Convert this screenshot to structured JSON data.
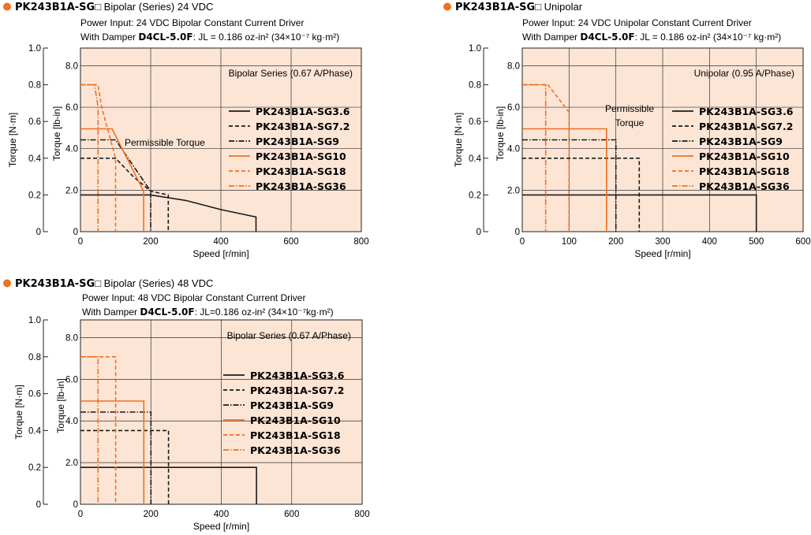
{
  "colors": {
    "orange": "#f07020",
    "panel": "#fde5d6",
    "black": "#1a1a1a",
    "grid": "#333333"
  },
  "chart_data": [
    {
      "type": "line",
      "title_model": "PK243B1A-SG",
      "title_box": "□",
      "title_suffix": " Bipolar (Series) 24 VDC",
      "info_line1": "Power Input: 24 VDC    Bipolar Constant Current Driver",
      "info_damper_prefix": "With Damper ",
      "info_damper_model": "D4CL-5.0F",
      "info_damper_rest": ": JL = 0.186 oz-in² (34×10⁻⁷ kg·m²)",
      "annotation": "Bipolar Series (0.67 A/Phase)",
      "region_label": [
        "Permissible Torque"
      ],
      "xlabel": "Speed [r/min]",
      "ylabel_left": "Torque [N·m]",
      "ylabel_right": "Torque [lb-in]",
      "xlim": [
        0,
        800
      ],
      "ylim": [
        0,
        1.0
      ],
      "x_ticks": [
        "0",
        "200",
        "400",
        "600",
        "800"
      ],
      "x_tick_values": [
        0,
        200,
        400,
        600,
        800
      ],
      "y_ticks_nm": [
        "0",
        "0.2",
        "0.4",
        "0.6",
        "0.8",
        "1.0"
      ],
      "y_tick_values_nm": [
        0,
        0.2,
        0.4,
        0.6,
        0.8,
        1.0
      ],
      "y_ticks_lbin": [
        "0",
        "2.0",
        "4.0",
        "6.0",
        "8.0"
      ],
      "y_tick_values_lbin": [
        0,
        2,
        4,
        6,
        8
      ],
      "series": [
        {
          "name": "PK243B1A-SG3.6",
          "color": "black",
          "dash": "solid",
          "points": [
            [
              0,
              0.2
            ],
            [
              200,
              0.2
            ],
            [
              300,
              0.17
            ],
            [
              400,
              0.12
            ],
            [
              500,
              0.08
            ],
            [
              500,
              0
            ]
          ]
        },
        {
          "name": "PK243B1A-SG7.2",
          "color": "black",
          "dash": "dash",
          "points": [
            [
              0,
              0.4
            ],
            [
              100,
              0.4
            ],
            [
              150,
              0.3
            ],
            [
              200,
              0.22
            ],
            [
              250,
              0.2
            ],
            [
              250,
              0
            ]
          ]
        },
        {
          "name": "PK243B1A-SG9",
          "color": "black",
          "dash": "dashdot",
          "points": [
            [
              0,
              0.5
            ],
            [
              100,
              0.5
            ],
            [
              200,
              0.22
            ],
            [
              200,
              0
            ]
          ]
        },
        {
          "name": "PK243B1A-SG10",
          "color": "orange",
          "dash": "solid",
          "points": [
            [
              0,
              0.56
            ],
            [
              90,
              0.56
            ],
            [
              180,
              0.22
            ],
            [
              180,
              0
            ]
          ]
        },
        {
          "name": "PK243B1A-SG18",
          "color": "orange",
          "dash": "dash",
          "points": [
            [
              0,
              0.8
            ],
            [
              50,
              0.8
            ],
            [
              60,
              0.68
            ],
            [
              100,
              0.4
            ],
            [
              100,
              0
            ]
          ]
        },
        {
          "name": "PK243B1A-SG36",
          "color": "orange",
          "dash": "dashdot",
          "points": [
            [
              0,
              0.8
            ],
            [
              40,
              0.8
            ],
            [
              50,
              0.68
            ],
            [
              50,
              0
            ]
          ]
        }
      ]
    },
    {
      "type": "line",
      "title_model": "PK243B1A-SG",
      "title_box": "□",
      "title_suffix": " Unipolar",
      "info_line1": "Power Input: 24 VDC    Unipolar Constant Current Driver",
      "info_damper_prefix": "With Damper ",
      "info_damper_model": "D4CL-5.0F",
      "info_damper_rest": ": JL = 0.186 oz-in² (34×10⁻⁷ kg·m²)",
      "annotation": "Unipolar (0.95 A/Phase)",
      "region_label": [
        "Permissible",
        "Torque"
      ],
      "xlabel": "Speed [r/min]",
      "ylabel_left": "Torque [N·m]",
      "ylabel_right": "Torque [lb-in]",
      "xlim": [
        0,
        600
      ],
      "ylim": [
        0,
        1.0
      ],
      "x_ticks": [
        "0",
        "100",
        "200",
        "300",
        "400",
        "500",
        "600"
      ],
      "x_tick_values": [
        0,
        100,
        200,
        300,
        400,
        500,
        600
      ],
      "y_ticks_nm": [
        "0",
        "0.2",
        "0.4",
        "0.6",
        "0.8",
        "1.0"
      ],
      "y_tick_values_nm": [
        0,
        0.2,
        0.4,
        0.6,
        0.8,
        1.0
      ],
      "y_ticks_lbin": [
        "0",
        "2.0",
        "4.0",
        "6.0",
        "8.0"
      ],
      "y_tick_values_lbin": [
        0,
        2,
        4,
        6,
        8
      ],
      "series": [
        {
          "name": "PK243B1A-SG3.6",
          "color": "black",
          "dash": "solid",
          "points": [
            [
              0,
              0.2
            ],
            [
              500,
              0.2
            ],
            [
              500,
              0
            ]
          ]
        },
        {
          "name": "PK243B1A-SG7.2",
          "color": "black",
          "dash": "dash",
          "points": [
            [
              0,
              0.4
            ],
            [
              250,
              0.4
            ],
            [
              250,
              0
            ]
          ]
        },
        {
          "name": "PK243B1A-SG9",
          "color": "black",
          "dash": "dashdot",
          "points": [
            [
              0,
              0.5
            ],
            [
              200,
              0.5
            ],
            [
              200,
              0
            ]
          ]
        },
        {
          "name": "PK243B1A-SG10",
          "color": "orange",
          "dash": "solid",
          "points": [
            [
              0,
              0.56
            ],
            [
              180,
              0.56
            ],
            [
              180,
              0
            ]
          ]
        },
        {
          "name": "PK243B1A-SG18",
          "color": "orange",
          "dash": "dash",
          "points": [
            [
              0,
              0.8
            ],
            [
              55,
              0.8
            ],
            [
              100,
              0.65
            ],
            [
              100,
              0
            ]
          ]
        },
        {
          "name": "PK243B1A-SG36",
          "color": "orange",
          "dash": "dashdot",
          "points": [
            [
              0,
              0.8
            ],
            [
              50,
              0.8
            ],
            [
              50,
              0
            ]
          ]
        }
      ]
    },
    {
      "type": "line",
      "title_model": "PK243B1A-SG",
      "title_box": "□",
      "title_suffix": " Bipolar (Series) 48 VDC",
      "info_line1": "Power Input: 48 VDC    Bipolar Constant Current Driver",
      "info_damper_prefix": "With Damper ",
      "info_damper_model": "D4CL-5.0F",
      "info_damper_rest": ": JL=0.186 oz-in² (34×10⁻⁷kg·m²)",
      "annotation": "Bipolar Series (0.67 A/Phase)",
      "region_label": [],
      "xlabel": "Speed [r/min]",
      "ylabel_left": "Torque [N·m]",
      "ylabel_right": "Torque [lb-in]",
      "xlim": [
        0,
        800
      ],
      "ylim": [
        0,
        1.0
      ],
      "x_ticks": [
        "0",
        "200",
        "400",
        "600",
        "800"
      ],
      "x_tick_values": [
        0,
        200,
        400,
        600,
        800
      ],
      "y_ticks_nm": [
        "0",
        "0.2",
        "0.4",
        "0.6",
        "0.8",
        "1.0"
      ],
      "y_tick_values_nm": [
        0,
        0.2,
        0.4,
        0.6,
        0.8,
        1.0
      ],
      "y_ticks_lbin": [
        "0",
        "2.0",
        "4.0",
        "6.0",
        "8.0"
      ],
      "y_tick_values_lbin": [
        0,
        2,
        4,
        6,
        8
      ],
      "series": [
        {
          "name": "PK243B1A-SG3.6",
          "color": "black",
          "dash": "solid",
          "points": [
            [
              0,
              0.2
            ],
            [
              500,
              0.2
            ],
            [
              500,
              0
            ]
          ]
        },
        {
          "name": "PK243B1A-SG7.2",
          "color": "black",
          "dash": "dash",
          "points": [
            [
              0,
              0.4
            ],
            [
              250,
              0.4
            ],
            [
              250,
              0
            ]
          ]
        },
        {
          "name": "PK243B1A-SG9",
          "color": "black",
          "dash": "dashdot",
          "points": [
            [
              0,
              0.5
            ],
            [
              200,
              0.5
            ],
            [
              200,
              0
            ]
          ]
        },
        {
          "name": "PK243B1A-SG10",
          "color": "orange",
          "dash": "solid",
          "points": [
            [
              0,
              0.56
            ],
            [
              180,
              0.56
            ],
            [
              180,
              0
            ]
          ]
        },
        {
          "name": "PK243B1A-SG18",
          "color": "orange",
          "dash": "dash",
          "points": [
            [
              0,
              0.8
            ],
            [
              100,
              0.8
            ],
            [
              100,
              0
            ]
          ]
        },
        {
          "name": "PK243B1A-SG36",
          "color": "orange",
          "dash": "dashdot",
          "points": [
            [
              0,
              0.8
            ],
            [
              50,
              0.8
            ],
            [
              50,
              0
            ]
          ]
        }
      ]
    }
  ]
}
